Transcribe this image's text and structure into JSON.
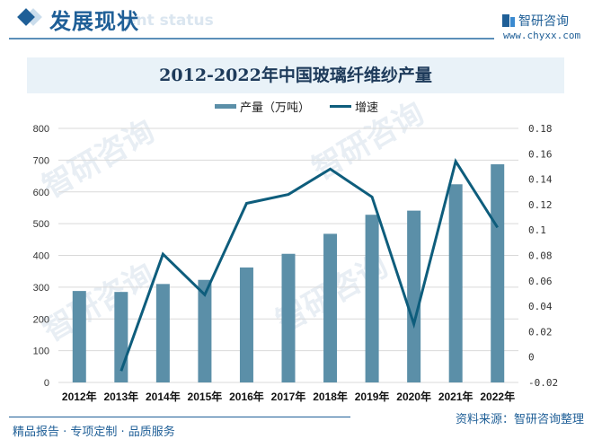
{
  "header": {
    "title": "发展现状",
    "subtitle_watermark": "ent status",
    "logo_name": "智研咨询",
    "logo_url": "www.chyxx.com"
  },
  "chart_data": {
    "type": "bar+line",
    "title": "2012-2022年中国玻璃纤维纱产量",
    "categories": [
      "2012年",
      "2013年",
      "2014年",
      "2015年",
      "2016年",
      "2017年",
      "2018年",
      "2019年",
      "2020年",
      "2021年",
      "2022年"
    ],
    "series": [
      {
        "name": "产量（万吨）",
        "type": "bar",
        "axis": "left",
        "color": "#5b8fa8",
        "values": [
          288,
          285,
          310,
          323,
          362,
          405,
          468,
          528,
          541,
          624,
          687
        ]
      },
      {
        "name": "增速",
        "type": "line",
        "axis": "right",
        "color": "#0e5d7c",
        "values": [
          null,
          -0.011,
          0.081,
          0.049,
          0.121,
          0.128,
          0.148,
          0.126,
          0.026,
          0.154,
          0.102
        ]
      }
    ],
    "left_axis": {
      "ticks": [
        "0",
        "100",
        "200",
        "300",
        "400",
        "500",
        "600",
        "700",
        "800"
      ],
      "ylim": [
        0,
        800
      ]
    },
    "right_axis": {
      "ticks": [
        "-0.02",
        "0",
        "0.02",
        "0.04",
        "0.06",
        "0.08",
        "0.1",
        "0.12",
        "0.14",
        "0.16",
        "0.18"
      ],
      "ylim": [
        -0.02,
        0.18
      ]
    },
    "legend_position": "top",
    "grid": true
  },
  "legend": {
    "bar_label": "产量（万吨）",
    "line_label": "增速"
  },
  "footer": {
    "left": "精品报告 · 专项定制 · 品质服务",
    "right": "资料来源：智研咨询整理"
  },
  "watermark": "智研咨询"
}
